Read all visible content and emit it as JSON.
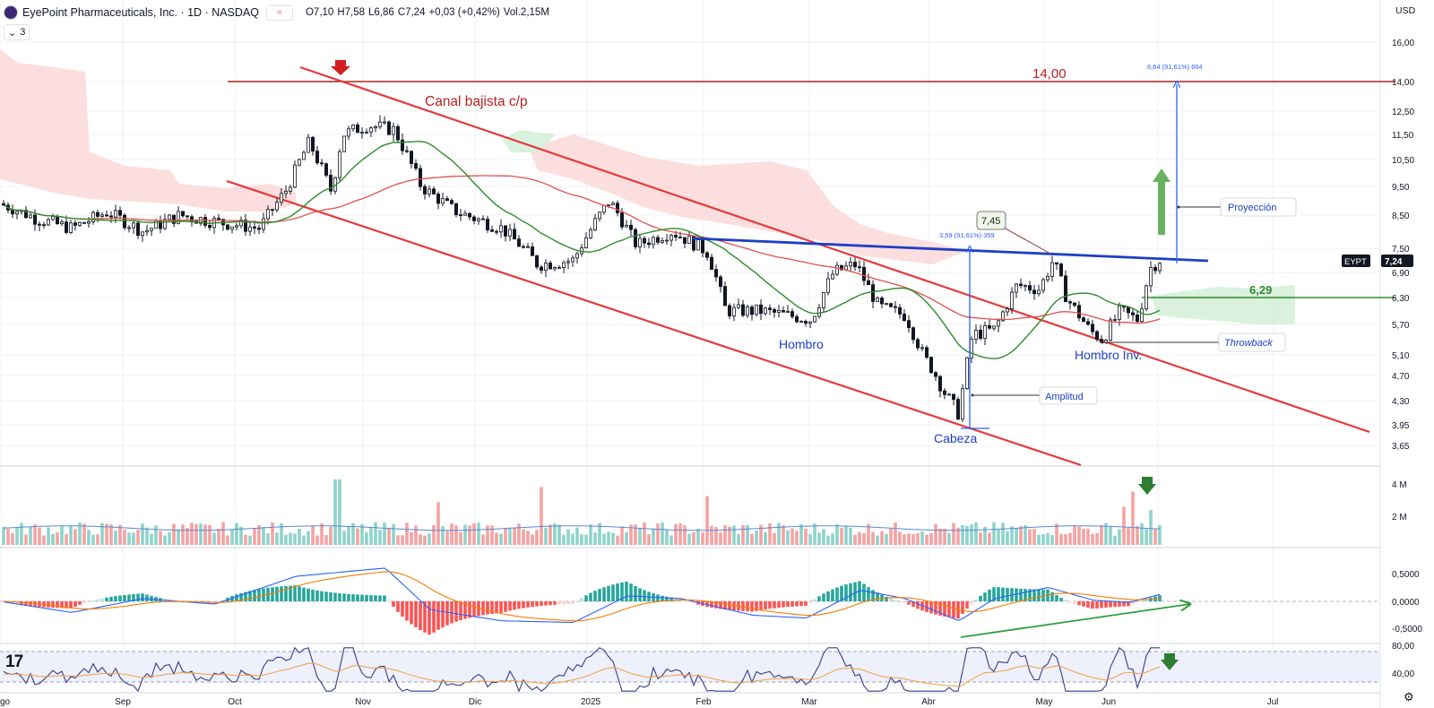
{
  "header": {
    "title": "EyePoint Pharmaceuticals, Inc. · 1D · NASDAQ",
    "open": "O7,10",
    "high": "H7,58",
    "low": "L6,86",
    "close": "C7,24",
    "change": "+0,03 (+0,42%)",
    "volume": "Vol.2,15M",
    "indicator_toggle": "3",
    "currency": "USD"
  },
  "price_scale": {
    "labels": [
      "16,00",
      "14,00",
      "12,50",
      "11,50",
      "10,50",
      "9,50",
      "8,50",
      "7,50",
      "6,90",
      "6,30",
      "5,70",
      "5,10",
      "4,70",
      "4,30",
      "3,95",
      "3,65"
    ],
    "last_price_symbol": "EYPT",
    "last_price": "7,24"
  },
  "volume_scale": {
    "labels": [
      "4 M",
      "2 M"
    ]
  },
  "macd_scale": {
    "labels": [
      "0,5000",
      "0,0000",
      "-0,5000"
    ]
  },
  "rsi_scale": {
    "labels": [
      "80,00",
      "40,00"
    ]
  },
  "time_axis": {
    "labels": [
      "go",
      "Sep",
      "Oct",
      "Nov",
      "Dic",
      "2025",
      "Feb",
      "Mar",
      "Abr",
      "May",
      "Jun",
      "Jul"
    ]
  },
  "annotations": {
    "channel": "Canal bajista c/p",
    "target_level": "14,00",
    "support_level": "6,29",
    "shoulder_left": "Hombro",
    "head": "Cabeza",
    "shoulder_right": "Hombro Inv.",
    "amplitude": "Amplitud",
    "projection": "Proyección",
    "throwback": "Throwback",
    "neck_callout": "7,45",
    "measure_amplitude": "3,59 (91,61%) 359",
    "measure_projection": "6,64 (91,61%) 664"
  },
  "colors": {
    "up": "#26a69a",
    "down": "#ef5350",
    "channel": "#e53a3a",
    "neckline": "#1d3fc4",
    "sma_short": "#2e8b2e",
    "sma_long": "#e05050",
    "measure": "#2962ff",
    "cloud_red": "#fbd8d8",
    "cloud_green": "#d6efd9",
    "target_line": "#b22222"
  },
  "chart_data": {
    "type": "candlestick",
    "symbol": "EYPT",
    "timeframe": "1D",
    "price_range": [
      3.5,
      16.5
    ],
    "last_close": 7.24,
    "key_points": {
      "channel_high_oct": 13.95,
      "head_low_apr": 3.95,
      "neckline_resistance": 7.45,
      "horizontal_support": 6.29,
      "projection_target": 14.0,
      "amplitude": 3.59,
      "projection": 6.64
    },
    "price_path": [
      {
        "x": "Ago",
        "y": 8.9
      },
      {
        "x": "Sep",
        "y": 8.1
      },
      {
        "x": "Oct",
        "y": 8.3
      },
      {
        "x": "Oct (late)",
        "y": 11.5
      },
      {
        "x": "Nov",
        "y": 12.0
      },
      {
        "x": "Dic",
        "y": 8.4
      },
      {
        "x": "2025",
        "y": 7.0
      },
      {
        "x": "2025 (mid-Jan)",
        "y": 9.2
      },
      {
        "x": "Feb",
        "y": 7.5
      },
      {
        "x": "Mar",
        "y": 5.9
      },
      {
        "x": "Mar (mid)",
        "y": 7.2
      },
      {
        "x": "Abr",
        "y": 5.5
      },
      {
        "x": "Abr (head)",
        "y": 4.0
      },
      {
        "x": "Abr (late)",
        "y": 5.6
      },
      {
        "x": "May",
        "y": 7.3
      },
      {
        "x": "May (mid)",
        "y": 5.5
      },
      {
        "x": "Jun",
        "y": 7.24
      }
    ],
    "volume_spikes_millions": [
      {
        "x": "Oct (late)",
        "y": 4.3
      },
      {
        "x": "Dic (late)",
        "y": 3.8
      },
      {
        "x": "Feb",
        "y": 3.2
      },
      {
        "x": "Jun",
        "y": 2.5
      }
    ]
  }
}
